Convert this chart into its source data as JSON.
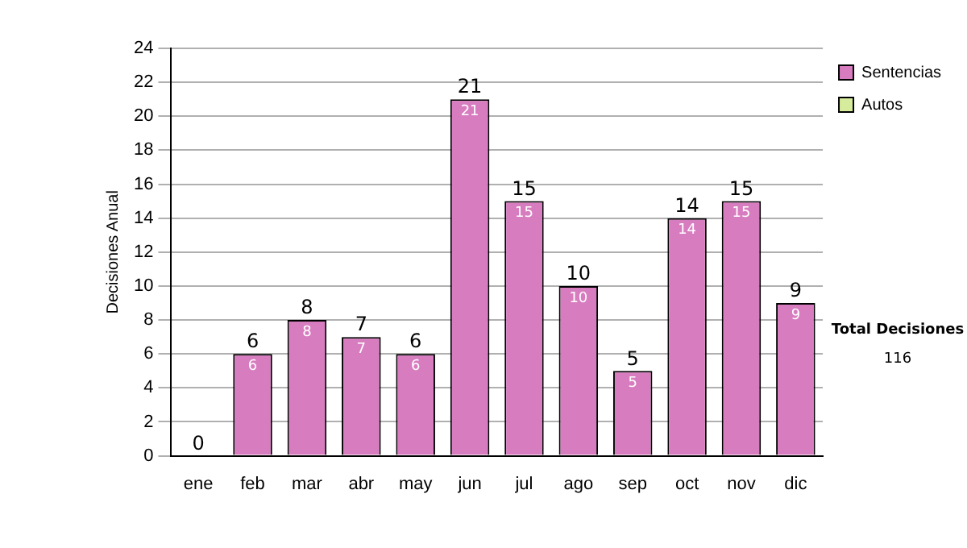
{
  "chart_data": {
    "type": "bar",
    "stacked": true,
    "ylabel": "Decisiones Anual",
    "categories": [
      "ene",
      "feb",
      "mar",
      "abr",
      "may",
      "jun",
      "jul",
      "ago",
      "sep",
      "oct",
      "nov",
      "dic"
    ],
    "series": [
      {
        "name": "Sentencias",
        "color": "#d87cc0",
        "values": [
          0,
          6,
          8,
          7,
          6,
          21,
          15,
          10,
          5,
          14,
          15,
          9
        ],
        "value_labels": [
          null,
          "6",
          "8",
          "7",
          "6",
          "21",
          "15",
          "10",
          "5",
          "14",
          "15",
          "9"
        ]
      },
      {
        "name": "Autos",
        "color": "#d6ec9c",
        "values": [
          0,
          0,
          0,
          0,
          0,
          0,
          0,
          0,
          0,
          0,
          0,
          0
        ]
      }
    ],
    "totals": [
      "0",
      "6",
      "8",
      "7",
      "6",
      "21",
      "15",
      "10",
      "5",
      "14",
      "15",
      "9"
    ],
    "ylim": [
      0,
      24
    ],
    "yticks": [
      0,
      2,
      4,
      6,
      8,
      10,
      12,
      14,
      16,
      18,
      20,
      22,
      24
    ],
    "grid": "y",
    "legend": "right",
    "annotations": [
      "Total Decisiones",
      "116"
    ]
  }
}
